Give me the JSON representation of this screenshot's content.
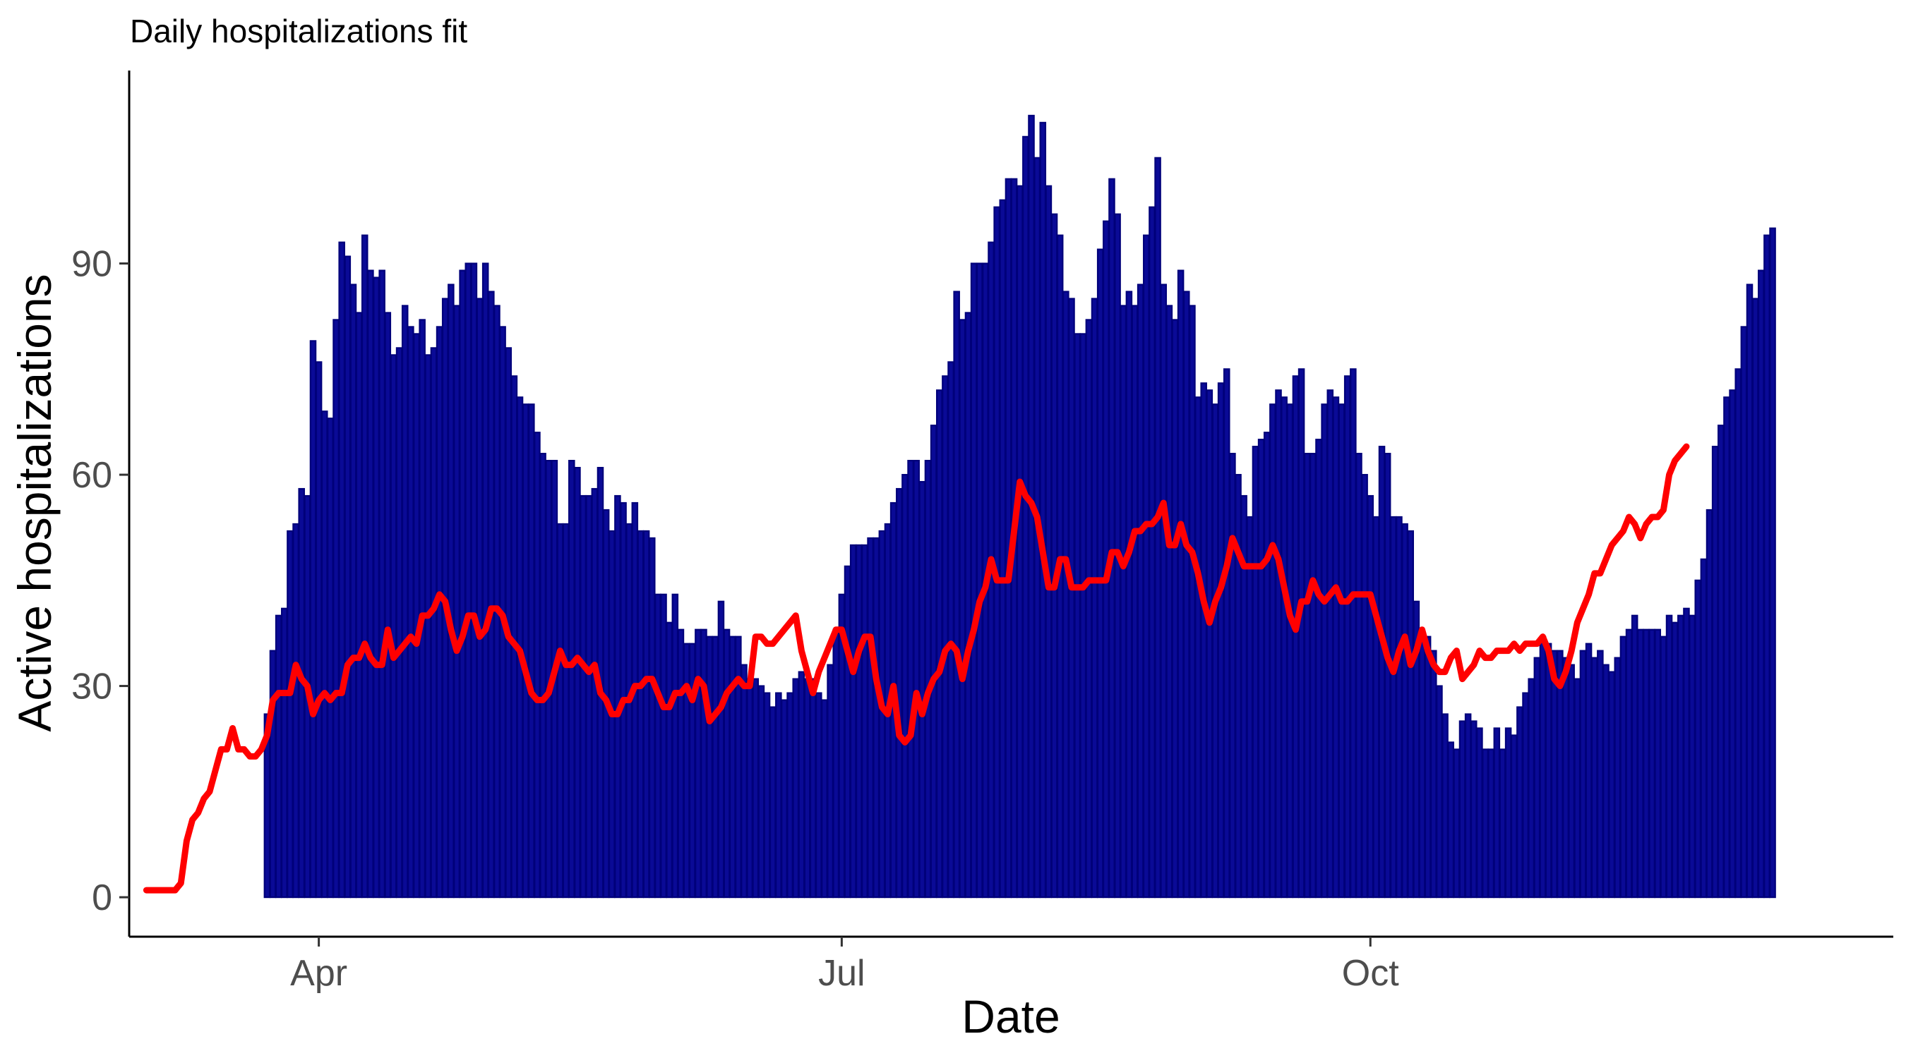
{
  "chart_data": {
    "type": "bar",
    "title": "Daily hospitalizations fit",
    "xlabel": "Date",
    "ylabel": "Active hospitalizations",
    "x_tick_labels": [
      "Apr",
      "Jul",
      "Oct"
    ],
    "x_tick_dates": [
      "2020-04-01",
      "2020-07-01",
      "2020-10-01"
    ],
    "y_ticks": [
      0,
      30,
      60,
      90
    ],
    "xlim": [
      "2020-02-28",
      "2020-12-31"
    ],
    "ylim": [
      -5.6,
      117.4
    ],
    "grid": false,
    "legend": "none",
    "bar_fill": "#0a0a96",
    "bar_outline": "#00007a",
    "line_color": "#ff0000",
    "series": [
      {
        "type": "bar",
        "start_date": "2020-03-23",
        "values": [
          26,
          35,
          40,
          41,
          52,
          53,
          58,
          57,
          79,
          76,
          69,
          68,
          82,
          93,
          91,
          87,
          83,
          94,
          89,
          88,
          89,
          83,
          77,
          78,
          84,
          81,
          80,
          82,
          77,
          78,
          81,
          85,
          87,
          84,
          89,
          90,
          90,
          85,
          90,
          86,
          84,
          81,
          78,
          74,
          71,
          70,
          70,
          66,
          63,
          62,
          62,
          53,
          53,
          62,
          61,
          57,
          57,
          58,
          61,
          55,
          52,
          57,
          56,
          53,
          56,
          52,
          52,
          51,
          43,
          43,
          39,
          43,
          38,
          36,
          36,
          38,
          38,
          37,
          37,
          42,
          38,
          37,
          37,
          33,
          31,
          31,
          30,
          29,
          27,
          29,
          28,
          29,
          31,
          32,
          31,
          31,
          29,
          28,
          33,
          38,
          43,
          47,
          50,
          50,
          50,
          51,
          51,
          52,
          53,
          56,
          58,
          60,
          62,
          62,
          59,
          62,
          67,
          72,
          74,
          76,
          86,
          82,
          83,
          90,
          90,
          90,
          93,
          98,
          99,
          102,
          102,
          101,
          108,
          111,
          105,
          110,
          101,
          97,
          94,
          86,
          85,
          80,
          80,
          82,
          85,
          92,
          96,
          102,
          97,
          84,
          86,
          84,
          87,
          94,
          98,
          105,
          87,
          84,
          82,
          89,
          86,
          84,
          71,
          73,
          72,
          70,
          73,
          75,
          63,
          60,
          57,
          54,
          64,
          65,
          66,
          70,
          72,
          71,
          70,
          74,
          75,
          63,
          63,
          65,
          70,
          72,
          71,
          70,
          74,
          75,
          63,
          60,
          57,
          54,
          64,
          63,
          54,
          54,
          53,
          52,
          42,
          37,
          37,
          35,
          30,
          26,
          22,
          21,
          25,
          26,
          25,
          24,
          21,
          21,
          24,
          21,
          24,
          23,
          27,
          29,
          31,
          34,
          37,
          36,
          35,
          35,
          34,
          33,
          31,
          35,
          36,
          34,
          35,
          33,
          32,
          34,
          37,
          38,
          40,
          38,
          38,
          38,
          38,
          37,
          40,
          39,
          40,
          41,
          40,
          45,
          48,
          55,
          64,
          67,
          71,
          72,
          75,
          81,
          87,
          85,
          89,
          94,
          95
        ]
      },
      {
        "type": "line",
        "name": "",
        "start_date": "2020-03-02",
        "values": [
          1,
          1,
          1,
          1,
          1,
          1,
          2,
          8,
          11,
          12,
          14,
          15,
          18,
          21,
          21,
          24,
          21,
          21,
          20,
          20,
          21,
          23,
          28,
          29,
          29,
          29,
          33,
          31,
          30,
          26,
          28,
          29,
          28,
          29,
          29,
          33,
          34,
          34,
          36,
          34,
          33,
          33,
          38,
          34,
          35,
          36,
          37,
          36,
          40,
          40,
          41,
          43,
          42,
          38,
          35,
          37,
          40,
          40,
          37,
          38,
          41,
          41,
          40,
          37,
          36,
          35,
          32,
          29,
          28,
          28,
          29,
          32,
          35,
          33,
          33,
          34,
          33,
          32,
          33,
          29,
          28,
          26,
          26,
          28,
          28,
          30,
          30,
          31,
          31,
          29,
          27,
          27,
          29,
          29,
          30,
          28,
          31,
          30,
          25,
          26,
          27,
          29,
          30,
          31,
          30,
          30,
          37,
          37,
          36,
          36,
          37,
          38,
          39,
          40,
          35,
          32,
          29,
          32,
          34,
          36,
          38,
          38,
          35,
          32,
          35,
          37,
          37,
          31,
          27,
          26,
          30,
          23,
          22,
          23,
          29,
          26,
          29,
          31,
          32,
          35,
          36,
          35,
          31,
          35,
          38,
          42,
          44,
          48,
          45,
          45,
          45,
          52,
          59,
          57,
          56,
          54,
          49,
          44,
          44,
          48,
          48,
          44,
          44,
          44,
          45,
          45,
          45,
          45,
          49,
          49,
          47,
          49,
          52,
          52,
          53,
          53,
          54,
          56,
          50,
          50,
          53,
          50,
          49,
          46,
          42,
          39,
          42,
          44,
          47,
          51,
          49,
          47,
          47,
          47,
          47,
          48,
          50,
          48,
          44,
          40,
          38,
          42,
          42,
          45,
          43,
          42,
          43,
          44,
          42,
          42,
          43,
          43,
          43,
          43,
          40,
          37,
          34,
          32,
          35,
          37,
          33,
          35,
          38,
          35,
          33,
          32,
          32,
          34,
          35,
          31,
          32,
          33,
          35,
          34,
          34,
          35,
          35,
          35,
          36,
          35,
          36,
          36,
          36,
          37,
          35,
          31,
          30,
          32,
          35,
          39,
          41,
          43,
          46,
          46,
          48,
          50,
          51,
          52,
          54,
          53,
          51,
          53,
          54,
          54,
          55,
          60,
          62,
          63,
          64
        ]
      }
    ]
  }
}
